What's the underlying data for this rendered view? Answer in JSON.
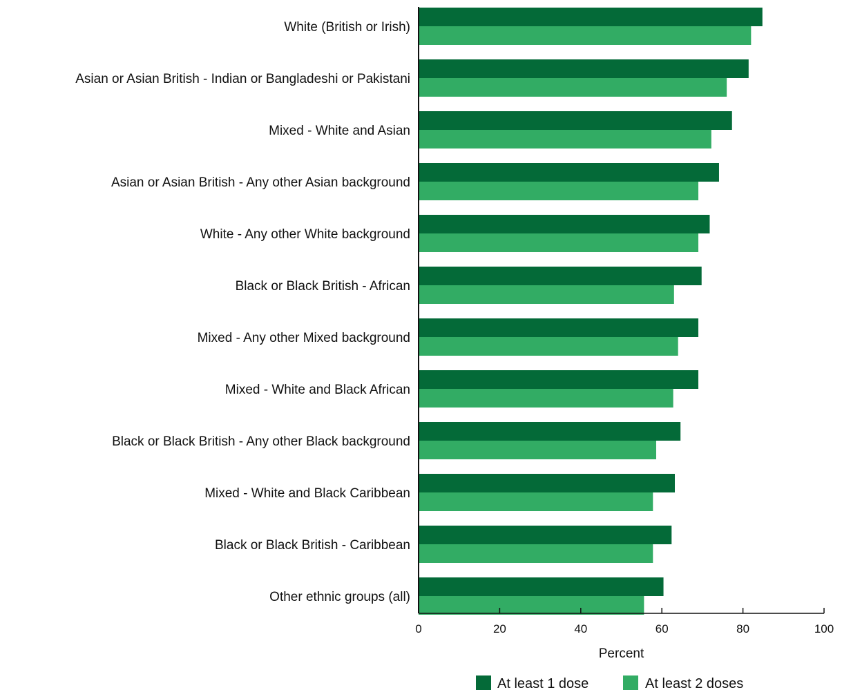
{
  "chart_data": {
    "type": "bar",
    "orientation": "horizontal",
    "categories": [
      "White (British or Irish)",
      "Asian or Asian British - Indian or Bangladeshi or Pakistani",
      "Mixed - White and Asian",
      "Asian or Asian British - Any other Asian background",
      "White - Any other White background",
      "Black or Black British - African",
      "Mixed - Any other Mixed background",
      "Mixed - White and Black African",
      "Black or Black British - Any other Black background",
      "Mixed - White and Black Caribbean",
      "Black or Black British - Caribbean",
      "Other ethnic groups (all)"
    ],
    "series": [
      {
        "name": "At least 1 dose",
        "color": "#046a38",
        "values": [
          84.8,
          81.4,
          77.3,
          74.1,
          71.8,
          69.8,
          69.0,
          69.0,
          64.6,
          63.2,
          62.4,
          60.4
        ]
      },
      {
        "name": "At least 2 doses",
        "color": "#32ac64",
        "values": [
          82.0,
          76.0,
          72.2,
          69.0,
          69.0,
          63.0,
          64.0,
          62.8,
          58.6,
          57.8,
          57.8,
          55.6
        ]
      }
    ],
    "xlabel": "Percent",
    "ylabel": "",
    "xlim": [
      0,
      100
    ],
    "xticks": [
      0,
      20,
      40,
      60,
      80,
      100
    ],
    "grid": false,
    "legend_position": "bottom"
  }
}
